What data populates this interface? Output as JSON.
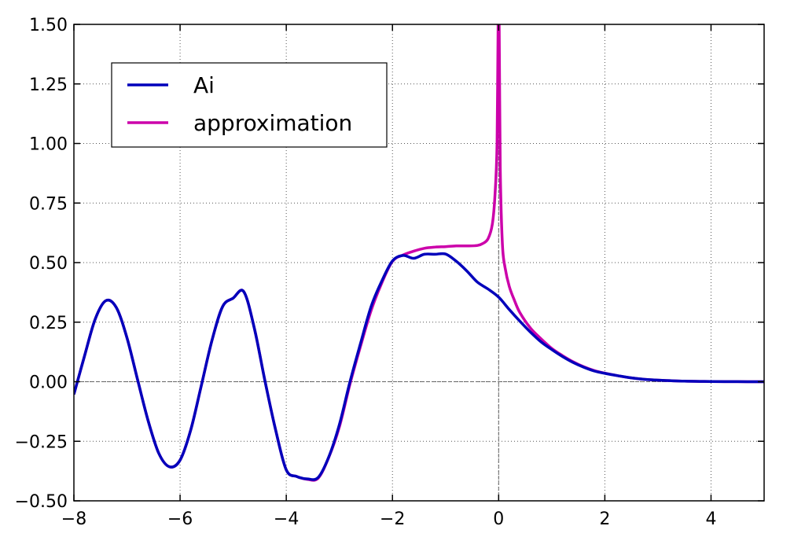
{
  "chart_data": {
    "type": "line",
    "title": "",
    "xlabel": "",
    "ylabel": "",
    "xlim": [
      -8,
      5
    ],
    "ylim": [
      -0.5,
      1.5
    ],
    "x_ticks": [
      -8,
      -6,
      -4,
      -2,
      0,
      2,
      4
    ],
    "x_tick_labels": [
      "−8",
      "−6",
      "−4",
      "−2",
      "0",
      "2",
      "4"
    ],
    "y_ticks": [
      -0.5,
      -0.25,
      0.0,
      0.25,
      0.5,
      0.75,
      1.0,
      1.25,
      1.5
    ],
    "y_tick_labels": [
      "−0.50",
      "−0.25",
      "0.00",
      "0.25",
      "0.50",
      "0.75",
      "1.00",
      "1.25",
      "1.50"
    ],
    "grid": true,
    "grid_style": "dotted",
    "reference_lines": {
      "horizontal_at_y": 0,
      "vertical_at_x": 0
    },
    "legend_position": "top-left",
    "series": [
      {
        "name": "Ai",
        "color": "#0000bb",
        "x": [
          -8.0,
          -7.8,
          -7.6,
          -7.4,
          -7.2,
          -7.0,
          -6.8,
          -6.6,
          -6.4,
          -6.2,
          -6.0,
          -5.8,
          -5.6,
          -5.4,
          -5.2,
          -5.0,
          -4.8,
          -4.6,
          -4.4,
          -4.2,
          -4.0,
          -3.8,
          -3.6,
          -3.4,
          -3.2,
          -3.0,
          -2.8,
          -2.6,
          -2.4,
          -2.2,
          -2.0,
          -1.8,
          -1.6,
          -1.4,
          -1.2,
          -1.0,
          -0.8,
          -0.6,
          -0.4,
          -0.2,
          0.0,
          0.2,
          0.4,
          0.6,
          0.8,
          1.0,
          1.2,
          1.4,
          1.6,
          1.8,
          2.0,
          2.25,
          2.5,
          2.75,
          3.0,
          3.5,
          4.0,
          4.5,
          5.0
        ],
        "y": [
          -0.053,
          0.108,
          0.262,
          0.34,
          0.311,
          0.184,
          0.008,
          -0.165,
          -0.301,
          -0.357,
          -0.329,
          -0.203,
          -0.016,
          0.173,
          0.315,
          0.351,
          0.378,
          0.223,
          0.002,
          -0.203,
          -0.37,
          -0.398,
          -0.408,
          -0.402,
          -0.316,
          -0.18,
          0.0,
          0.162,
          0.317,
          0.423,
          0.507,
          0.53,
          0.518,
          0.535,
          0.535,
          0.536,
          0.506,
          0.465,
          0.418,
          0.389,
          0.355,
          0.303,
          0.254,
          0.208,
          0.167,
          0.135,
          0.106,
          0.081,
          0.061,
          0.045,
          0.035,
          0.025,
          0.016,
          0.01,
          0.0066,
          0.0023,
          0.001,
          0.0003,
          0.0001
        ]
      },
      {
        "name": "approximation",
        "color": "#cc00aa",
        "x": [
          -8.0,
          -7.8,
          -7.6,
          -7.4,
          -7.2,
          -7.0,
          -6.8,
          -6.6,
          -6.4,
          -6.2,
          -6.0,
          -5.8,
          -5.6,
          -5.4,
          -5.2,
          -5.0,
          -4.8,
          -4.6,
          -4.4,
          -4.2,
          -4.0,
          -3.8,
          -3.6,
          -3.4,
          -3.2,
          -3.0,
          -2.8,
          -2.6,
          -2.4,
          -2.2,
          -2.0,
          -1.8,
          -1.6,
          -1.4,
          -1.2,
          -1.0,
          -0.8,
          -0.6,
          -0.4,
          -0.3,
          -0.2,
          -0.12,
          -0.07,
          -0.03,
          -0.01,
          0.01,
          0.03,
          0.07,
          0.12,
          0.2,
          0.3,
          0.4,
          0.6,
          0.8,
          1.0,
          1.2,
          1.4,
          1.6,
          1.8,
          2.0,
          2.25,
          2.5,
          2.75,
          3.0,
          3.5,
          4.0,
          4.5,
          5.0
        ],
        "y": [
          -0.053,
          0.108,
          0.262,
          0.34,
          0.311,
          0.184,
          0.008,
          -0.165,
          -0.301,
          -0.357,
          -0.329,
          -0.203,
          -0.016,
          0.173,
          0.315,
          0.351,
          0.378,
          0.223,
          0.002,
          -0.203,
          -0.37,
          -0.398,
          -0.41,
          -0.405,
          -0.318,
          -0.19,
          -0.01,
          0.15,
          0.3,
          0.415,
          0.505,
          0.532,
          0.548,
          0.56,
          0.565,
          0.567,
          0.57,
          0.57,
          0.572,
          0.58,
          0.6,
          0.66,
          0.78,
          1.0,
          1.5,
          1.5,
          0.9,
          0.58,
          0.48,
          0.4,
          0.34,
          0.29,
          0.225,
          0.18,
          0.14,
          0.11,
          0.084,
          0.063,
          0.047,
          0.036,
          0.025,
          0.016,
          0.01,
          0.0066,
          0.0023,
          0.001,
          0.0003,
          0.0001
        ]
      }
    ]
  }
}
